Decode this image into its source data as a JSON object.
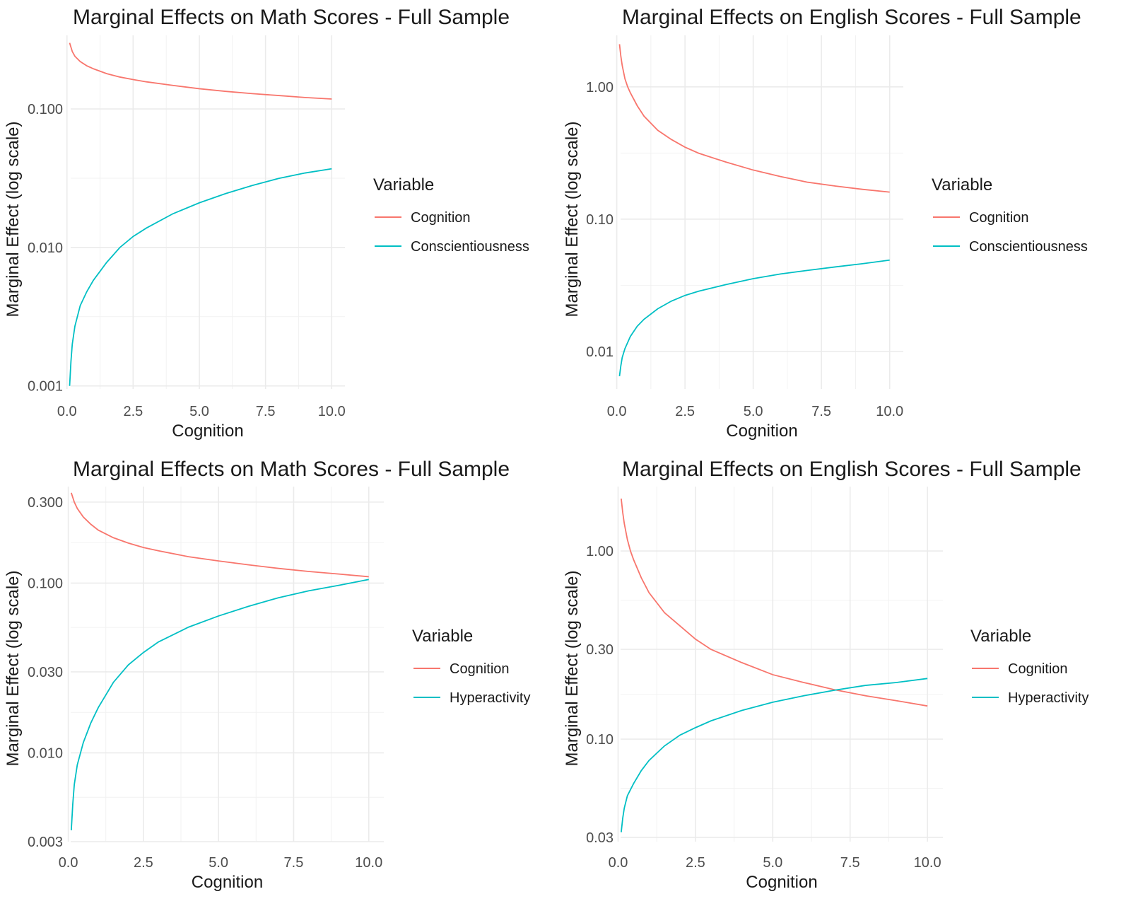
{
  "chart_data": [
    {
      "type": "line",
      "title": "Marginal Effects on Math Scores - Full Sample",
      "xlabel": "Cognition",
      "ylabel": "Marginal Effect (log scale)",
      "y_scale": "log10",
      "xlim": [
        0,
        10
      ],
      "ylim": [
        0.00095,
        0.34
      ],
      "x_ticks": [
        0,
        2.5,
        5,
        7.5,
        10
      ],
      "x_tick_labels": [
        "0.0",
        "2.5",
        "5.0",
        "7.5",
        "10.0"
      ],
      "y_ticks": [
        0.001,
        0.01,
        0.1
      ],
      "y_tick_labels": [
        "0.001",
        "0.010",
        "0.100"
      ],
      "grid": true,
      "legend": {
        "title": "Variable",
        "position": "right"
      },
      "series": [
        {
          "name": "Cognition",
          "color": "#F8766D",
          "x": [
            0.1,
            0.2,
            0.3,
            0.5,
            0.75,
            1.0,
            1.5,
            2.0,
            2.5,
            3.0,
            4.0,
            5.0,
            6.0,
            7.0,
            8.0,
            9.0,
            10.0
          ],
          "y": [
            0.3,
            0.26,
            0.24,
            0.22,
            0.205,
            0.195,
            0.18,
            0.17,
            0.163,
            0.157,
            0.148,
            0.14,
            0.134,
            0.129,
            0.125,
            0.121,
            0.118
          ]
        },
        {
          "name": "Conscientiousness",
          "color": "#00BFC4",
          "x": [
            0.1,
            0.15,
            0.2,
            0.3,
            0.5,
            0.75,
            1.0,
            1.5,
            2.0,
            2.5,
            3.0,
            4.0,
            5.0,
            6.0,
            7.0,
            8.0,
            9.0,
            10.0
          ],
          "y": [
            0.001,
            0.0015,
            0.002,
            0.0027,
            0.0038,
            0.0048,
            0.0058,
            0.0078,
            0.01,
            0.012,
            0.0138,
            0.0175,
            0.021,
            0.0245,
            0.028,
            0.0315,
            0.0345,
            0.037
          ]
        }
      ]
    },
    {
      "type": "line",
      "title": "Marginal Effects on English Scores - Full Sample",
      "xlabel": "Cognition",
      "ylabel": "Marginal Effect (log scale)",
      "y_scale": "log10",
      "xlim": [
        0,
        10
      ],
      "ylim": [
        0.0052,
        2.45
      ],
      "x_ticks": [
        0,
        2.5,
        5,
        7.5,
        10
      ],
      "x_tick_labels": [
        "0.0",
        "2.5",
        "5.0",
        "7.5",
        "10.0"
      ],
      "y_ticks": [
        0.01,
        0.1,
        1.0
      ],
      "y_tick_labels": [
        "0.01",
        "0.10",
        "1.00"
      ],
      "grid": true,
      "legend": {
        "title": "Variable",
        "position": "right"
      },
      "series": [
        {
          "name": "Cognition",
          "color": "#F8766D",
          "x": [
            0.1,
            0.15,
            0.2,
            0.3,
            0.4,
            0.5,
            0.75,
            1.0,
            1.5,
            2.0,
            2.5,
            3.0,
            4.0,
            5.0,
            6.0,
            7.0,
            8.0,
            9.0,
            10.0
          ],
          "y": [
            2.1,
            1.7,
            1.45,
            1.15,
            1.0,
            0.9,
            0.72,
            0.6,
            0.47,
            0.4,
            0.35,
            0.315,
            0.27,
            0.235,
            0.21,
            0.19,
            0.178,
            0.168,
            0.16
          ]
        },
        {
          "name": "Conscientiousness",
          "color": "#00BFC4",
          "x": [
            0.1,
            0.15,
            0.2,
            0.3,
            0.5,
            0.75,
            1.0,
            1.5,
            2.0,
            2.5,
            3.0,
            4.0,
            5.0,
            6.0,
            7.0,
            8.0,
            9.0,
            10.0
          ],
          "y": [
            0.0065,
            0.0078,
            0.009,
            0.0105,
            0.013,
            0.0155,
            0.0175,
            0.021,
            0.024,
            0.0265,
            0.0285,
            0.032,
            0.0355,
            0.0385,
            0.041,
            0.0435,
            0.046,
            0.049
          ]
        }
      ]
    },
    {
      "type": "line",
      "title": "Marginal Effects on Math Scores - Full Sample",
      "xlabel": "Cognition",
      "ylabel": "Marginal Effect (log scale)",
      "y_scale": "log10",
      "xlim": [
        0,
        10
      ],
      "ylim": [
        0.003,
        0.37
      ],
      "x_ticks": [
        0,
        2.5,
        5,
        7.5,
        10
      ],
      "x_tick_labels": [
        "0.0",
        "2.5",
        "5.0",
        "7.5",
        "10.0"
      ],
      "y_ticks": [
        0.003,
        0.01,
        0.03,
        0.1,
        0.3
      ],
      "y_tick_labels": [
        "0.003",
        "0.010",
        "0.030",
        "0.100",
        "0.300"
      ],
      "grid": true,
      "legend": {
        "title": "Variable",
        "position": "right"
      },
      "series": [
        {
          "name": "Cognition",
          "color": "#F8766D",
          "x": [
            0.1,
            0.2,
            0.3,
            0.5,
            0.75,
            1.0,
            1.5,
            2.0,
            2.5,
            3.0,
            4.0,
            5.0,
            6.0,
            7.0,
            8.0,
            9.0,
            10.0
          ],
          "y": [
            0.34,
            0.3,
            0.275,
            0.245,
            0.222,
            0.205,
            0.185,
            0.172,
            0.162,
            0.155,
            0.143,
            0.135,
            0.128,
            0.122,
            0.117,
            0.113,
            0.109
          ]
        },
        {
          "name": "Hyperactivity",
          "color": "#00BFC4",
          "x": [
            0.1,
            0.15,
            0.2,
            0.3,
            0.5,
            0.75,
            1.0,
            1.5,
            2.0,
            2.5,
            3.0,
            4.0,
            5.0,
            6.0,
            7.0,
            8.0,
            9.0,
            10.0
          ],
          "y": [
            0.0035,
            0.005,
            0.0065,
            0.0085,
            0.0115,
            0.015,
            0.0185,
            0.026,
            0.033,
            0.039,
            0.045,
            0.055,
            0.064,
            0.073,
            0.082,
            0.09,
            0.097,
            0.105
          ]
        }
      ]
    },
    {
      "type": "line",
      "title": "Marginal Effects on English Scores - Full Sample",
      "xlabel": "Cognition",
      "ylabel": "Marginal Effect (log scale)",
      "y_scale": "log10",
      "xlim": [
        0,
        10
      ],
      "ylim": [
        0.0285,
        2.2
      ],
      "x_ticks": [
        0,
        2.5,
        5,
        7.5,
        10
      ],
      "x_tick_labels": [
        "0.0",
        "2.5",
        "5.0",
        "7.5",
        "10.0"
      ],
      "y_ticks": [
        0.03,
        0.1,
        0.3,
        1.0
      ],
      "y_tick_labels": [
        "0.03",
        "0.10",
        "0.30",
        "1.00"
      ],
      "grid": true,
      "legend": {
        "title": "Variable",
        "position": "right"
      },
      "series": [
        {
          "name": "Cognition",
          "color": "#F8766D",
          "x": [
            0.1,
            0.15,
            0.2,
            0.3,
            0.4,
            0.5,
            0.75,
            1.0,
            1.5,
            2.0,
            2.5,
            3.0,
            4.0,
            5.0,
            6.0,
            7.0,
            8.0,
            9.0,
            10.0
          ],
          "y": [
            1.9,
            1.6,
            1.4,
            1.15,
            1.0,
            0.9,
            0.72,
            0.6,
            0.47,
            0.4,
            0.34,
            0.3,
            0.255,
            0.22,
            0.2,
            0.183,
            0.17,
            0.16,
            0.15
          ]
        },
        {
          "name": "Hyperactivity",
          "color": "#00BFC4",
          "x": [
            0.1,
            0.15,
            0.2,
            0.3,
            0.5,
            0.75,
            1.0,
            1.5,
            2.0,
            2.5,
            3.0,
            4.0,
            5.0,
            6.0,
            7.0,
            8.0,
            9.0,
            10.0
          ],
          "y": [
            0.032,
            0.038,
            0.043,
            0.05,
            0.058,
            0.068,
            0.077,
            0.092,
            0.105,
            0.115,
            0.125,
            0.142,
            0.157,
            0.17,
            0.182,
            0.193,
            0.2,
            0.21
          ]
        }
      ]
    }
  ]
}
